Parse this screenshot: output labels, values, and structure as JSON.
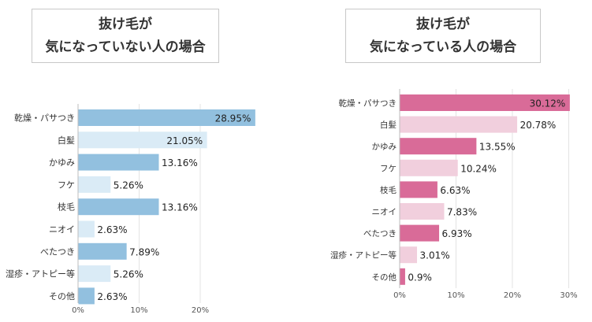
{
  "chart_data": [
    {
      "type": "bar",
      "orientation": "horizontal",
      "title": [
        "抜け毛が",
        "気になっていない人の場合"
      ],
      "categories": [
        "乾燥・パサつき",
        "白髪",
        "かゆみ",
        "フケ",
        "枝毛",
        "ニオイ",
        "べたつき",
        "湿疹・アトピー等",
        "その他"
      ],
      "values": [
        28.95,
        21.05,
        13.16,
        5.26,
        13.16,
        2.63,
        7.89,
        5.26,
        2.63
      ],
      "labels": [
        "28.95%",
        "21.05%",
        "13.16%",
        "5.26%",
        "13.16%",
        "2.63%",
        "7.89%",
        "5.26%",
        "2.63%"
      ],
      "xlim": [
        0,
        30
      ],
      "xticks": [
        "0%",
        "10%",
        "20%"
      ],
      "colors": {
        "dark": "#92c0df",
        "light": "#daebf6"
      },
      "shade": [
        "dark",
        "light",
        "dark",
        "light",
        "dark",
        "light",
        "dark",
        "light",
        "dark"
      ]
    },
    {
      "type": "bar",
      "orientation": "horizontal",
      "title": [
        "抜け毛が",
        "気になっている人の場合"
      ],
      "categories": [
        "乾燥・パサつき",
        "白髪",
        "かゆみ",
        "フケ",
        "枝毛",
        "ニオイ",
        "べたつき",
        "湿疹・アトピー等",
        "その他"
      ],
      "values": [
        30.12,
        20.78,
        13.55,
        10.24,
        6.63,
        7.83,
        6.93,
        3.01,
        0.9
      ],
      "labels": [
        "30.12%",
        "20.78%",
        "13.55%",
        "10.24%",
        "6.63%",
        "7.83%",
        "6.93%",
        "3.01%",
        "0.9%"
      ],
      "xlim": [
        0,
        30
      ],
      "xticks": [
        "0%",
        "10%",
        "20%",
        "30%"
      ],
      "colors": {
        "dark": "#d96b98",
        "light": "#f1cfdd"
      },
      "shade": [
        "dark",
        "light",
        "dark",
        "light",
        "dark",
        "light",
        "dark",
        "light",
        "dark"
      ]
    }
  ]
}
